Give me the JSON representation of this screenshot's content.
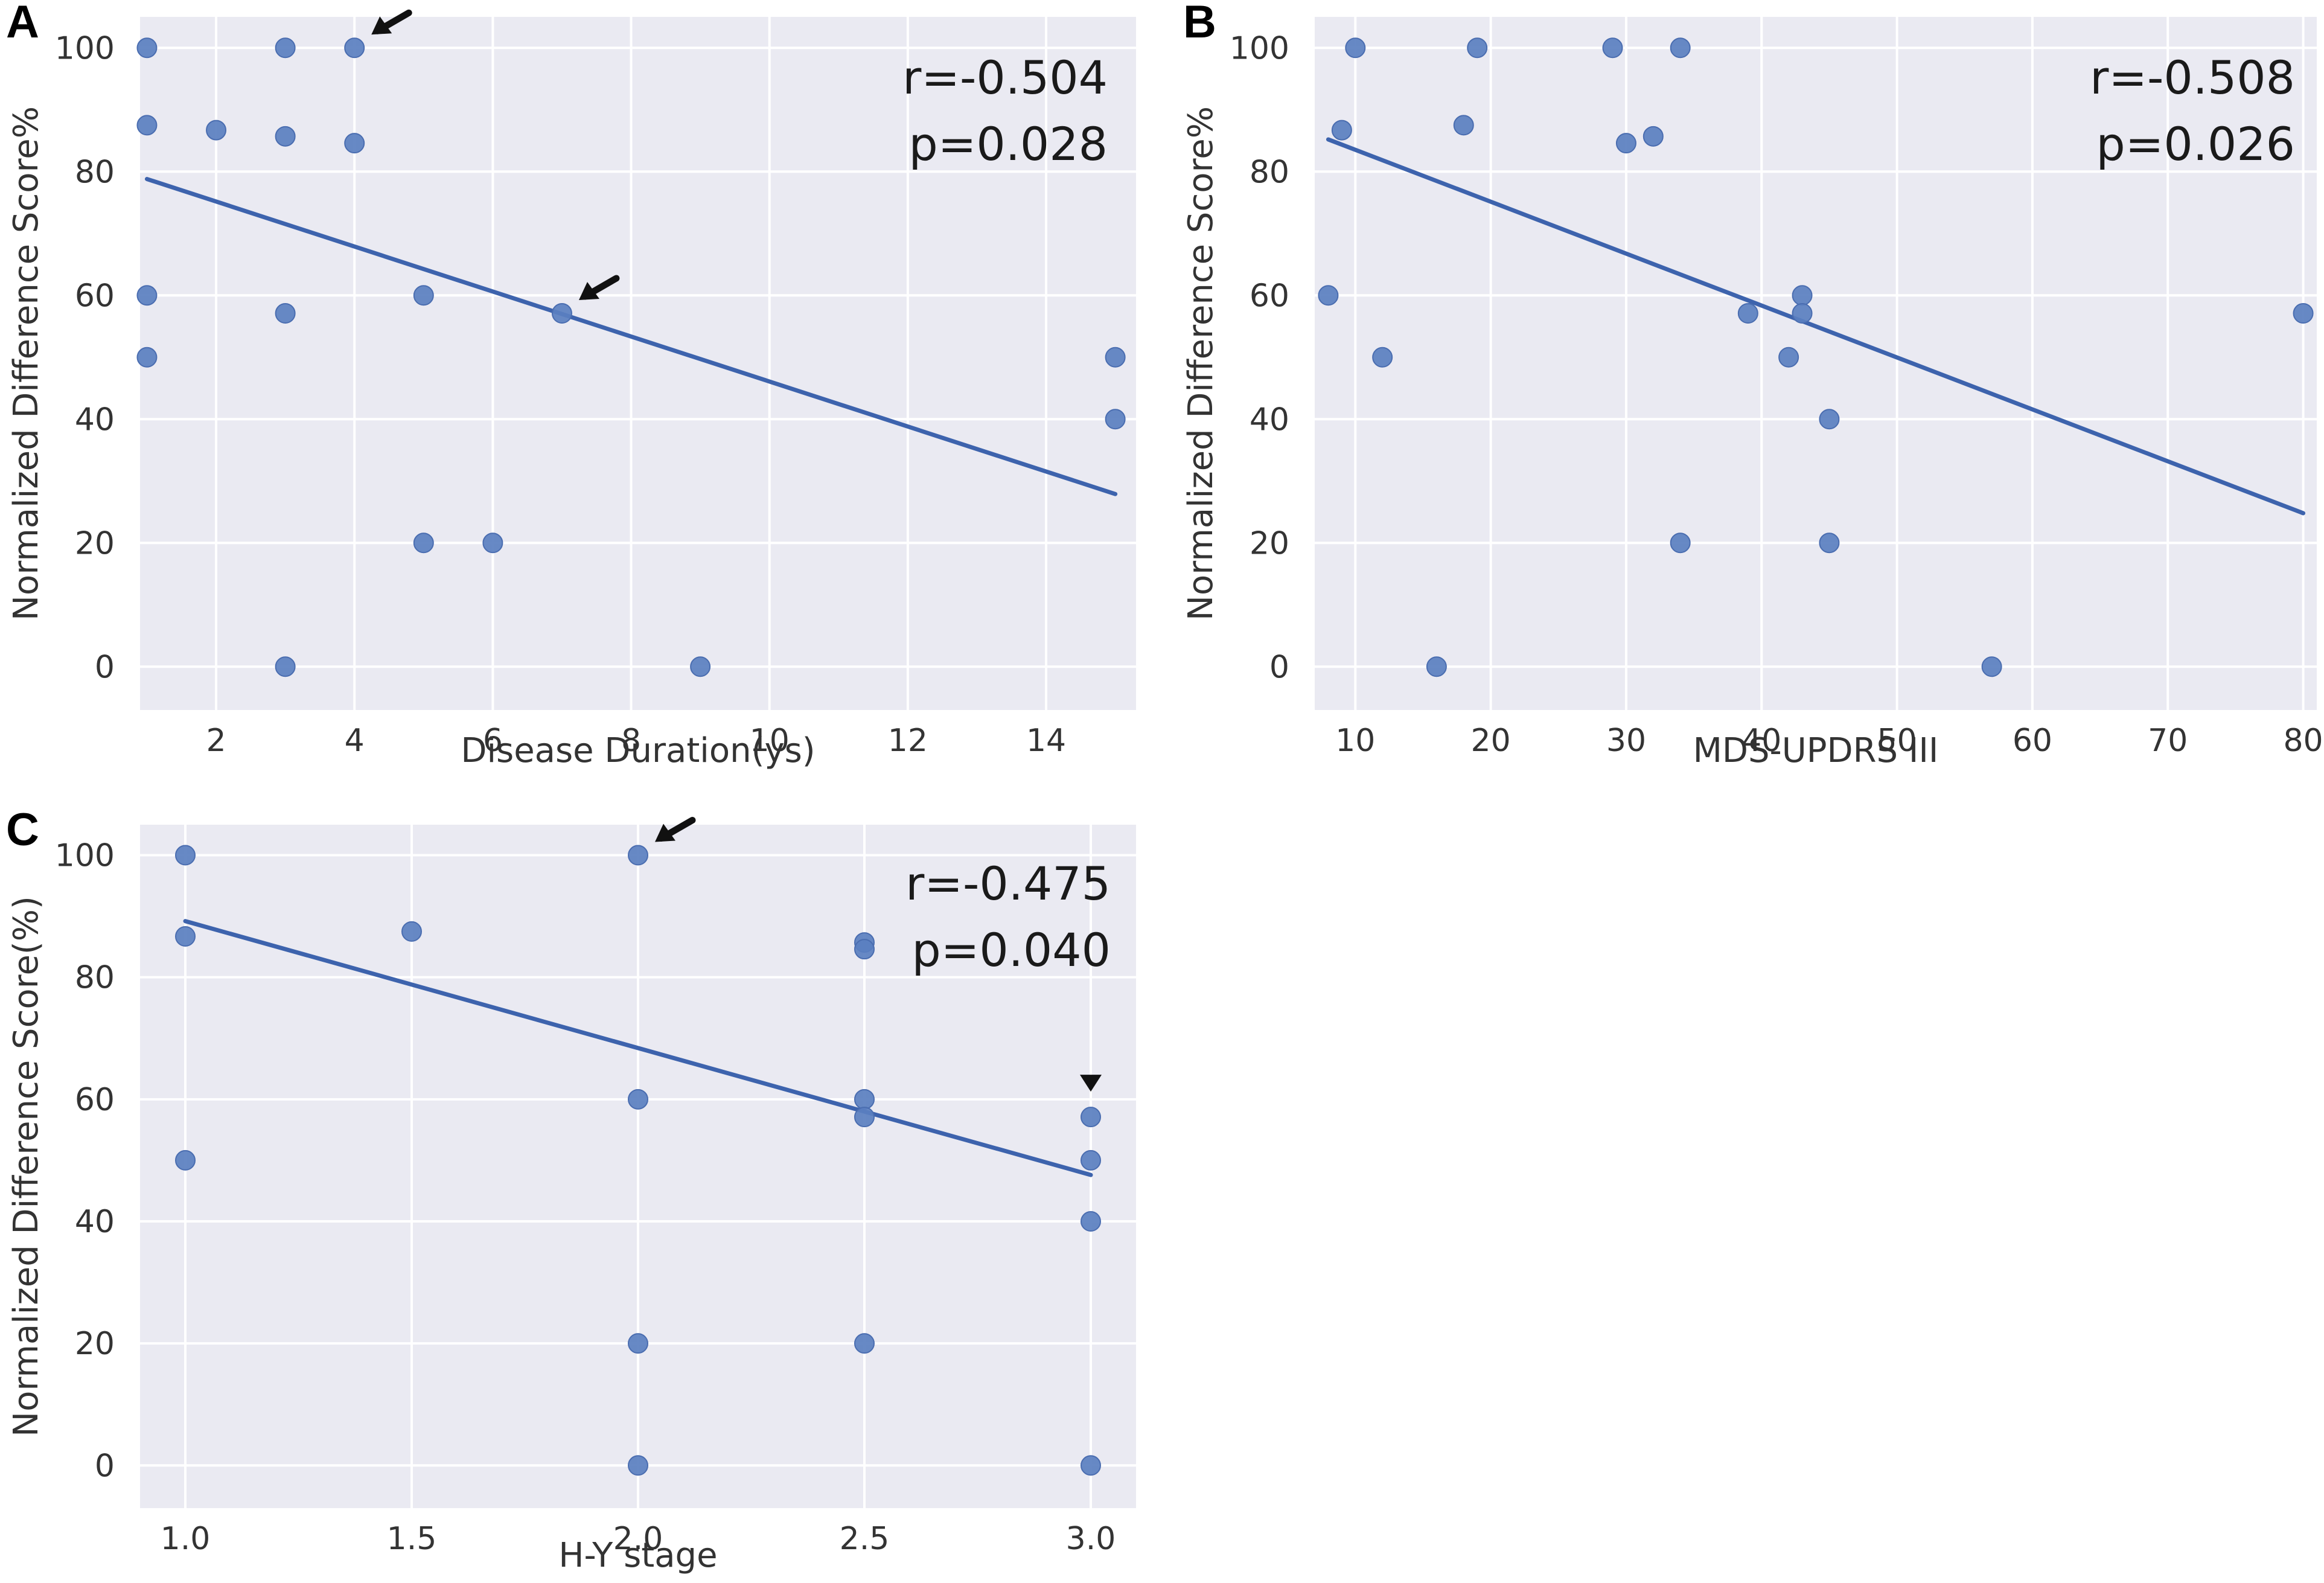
{
  "chart_data": [
    {
      "panel": "A",
      "type": "scatter",
      "xlabel": "Disease Duration(ys)",
      "ylabel": "Normalized Difference Score%",
      "xlim": [
        0.9,
        15.3
      ],
      "ylim": [
        -7,
        105
      ],
      "xticks": [
        2,
        4,
        6,
        8,
        10,
        12,
        14
      ],
      "yticks": [
        0,
        20,
        40,
        60,
        80,
        100
      ],
      "points": [
        [
          1,
          100
        ],
        [
          1,
          87.5
        ],
        [
          1,
          60
        ],
        [
          1,
          50
        ],
        [
          2,
          86.7
        ],
        [
          3,
          100
        ],
        [
          3,
          85.7
        ],
        [
          3,
          57.1
        ],
        [
          3,
          0
        ],
        [
          4,
          100
        ],
        [
          4,
          84.6
        ],
        [
          5,
          60
        ],
        [
          5,
          20
        ],
        [
          6,
          20
        ],
        [
          7,
          57.1
        ],
        [
          9,
          0
        ],
        [
          15,
          50
        ],
        [
          15,
          40
        ]
      ],
      "fit_line": {
        "x": [
          1,
          15
        ],
        "y": [
          78.8,
          27.9
        ]
      },
      "arrows": [
        [
          4,
          100
        ],
        [
          7,
          57.1
        ]
      ],
      "stats": {
        "r": "r=-0.504",
        "p": "p=0.028"
      }
    },
    {
      "panel": "B",
      "type": "scatter",
      "xlabel": "MDS-UPDRS III",
      "ylabel": "Normalized Difference Score%",
      "xlim": [
        7,
        81
      ],
      "ylim": [
        -7,
        105
      ],
      "xticks": [
        10,
        20,
        30,
        40,
        50,
        60,
        70,
        80
      ],
      "yticks": [
        0,
        20,
        40,
        60,
        80,
        100
      ],
      "points": [
        [
          8,
          60
        ],
        [
          9,
          86.7
        ],
        [
          10,
          100
        ],
        [
          12,
          50
        ],
        [
          16,
          0
        ],
        [
          18,
          87.5
        ],
        [
          19,
          100
        ],
        [
          29,
          100
        ],
        [
          30,
          84.6
        ],
        [
          32,
          85.7
        ],
        [
          34,
          100
        ],
        [
          34,
          20
        ],
        [
          39,
          57.1
        ],
        [
          42,
          50
        ],
        [
          43,
          60
        ],
        [
          43,
          57.1
        ],
        [
          45,
          40
        ],
        [
          45,
          20
        ],
        [
          57,
          0
        ],
        [
          80,
          57.1
        ]
      ],
      "fit_line": {
        "x": [
          8,
          80
        ],
        "y": [
          85.2,
          24.8
        ]
      },
      "stats": {
        "r": "r=-0.508",
        "p": "p=0.026"
      }
    },
    {
      "panel": "C",
      "type": "scatter",
      "xlabel": "H-Y stage",
      "ylabel": "Normalized Difference Score(%)",
      "xlim": [
        0.9,
        3.1
      ],
      "ylim": [
        -7,
        105
      ],
      "xticks": [
        "1.0",
        "1.5",
        "2.0",
        "2.5",
        "3.0"
      ],
      "yticks": [
        0,
        20,
        40,
        60,
        80,
        100
      ],
      "points": [
        [
          1.0,
          100
        ],
        [
          1.0,
          86.7
        ],
        [
          1.0,
          50
        ],
        [
          1.5,
          87.5
        ],
        [
          2.0,
          100
        ],
        [
          2.0,
          60
        ],
        [
          2.0,
          20
        ],
        [
          2.0,
          0
        ],
        [
          2.5,
          85.7
        ],
        [
          2.5,
          84.6
        ],
        [
          2.5,
          60
        ],
        [
          2.5,
          57.1
        ],
        [
          2.5,
          20
        ],
        [
          3.0,
          57.1
        ],
        [
          3.0,
          50
        ],
        [
          3.0,
          40
        ],
        [
          3.0,
          0
        ]
      ],
      "fit_line": {
        "x": [
          1.0,
          3.0
        ],
        "y": [
          89.2,
          47.6
        ]
      },
      "arrows": [
        [
          2.0,
          100
        ]
      ],
      "triangle_marker": [
        3.0,
        57.1
      ],
      "stats": {
        "r": "r=-0.475",
        "p": "p=0.040"
      }
    }
  ],
  "colors": {
    "panel_bg": "#eaeaf2",
    "grid": "#ffffff",
    "point": "#5a7fc0",
    "point_edge": "#4a6db0",
    "line": "#3d63ad",
    "text": "#333333"
  }
}
